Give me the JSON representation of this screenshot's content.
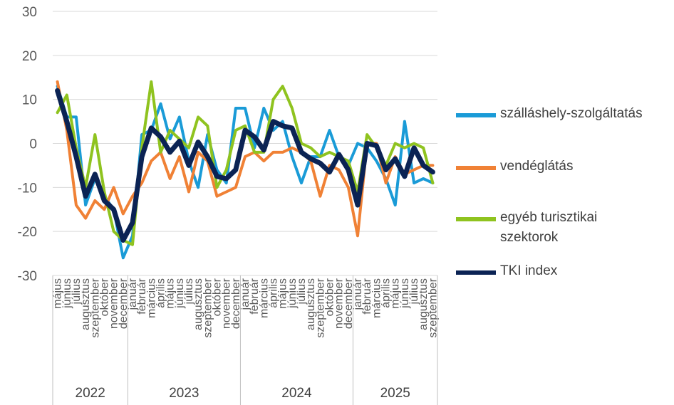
{
  "chart_data": {
    "type": "line",
    "title": "",
    "xlabel": "",
    "ylabel": "",
    "ylim": [
      -30,
      30
    ],
    "yticks": [
      30,
      20,
      10,
      0,
      -10,
      -20,
      -30
    ],
    "grid": "horizontal",
    "legend_position": "right",
    "groups": [
      {
        "label": "2022",
        "span": 8
      },
      {
        "label": "2023",
        "span": 12
      },
      {
        "label": "2024",
        "span": 12
      },
      {
        "label": "2025",
        "span": 9
      }
    ],
    "categories": [
      "május",
      "június",
      "július",
      "augusztus",
      "szeptember",
      "október",
      "november",
      "december",
      "január",
      "február",
      "március",
      "április",
      "május",
      "június",
      "július",
      "augusztus",
      "szeptember",
      "október",
      "november",
      "december",
      "január",
      "február",
      "március",
      "április",
      "május",
      "június",
      "július",
      "augusztus",
      "szeptember",
      "október",
      "november",
      "december",
      "január",
      "február",
      "március",
      "április",
      "május",
      "június",
      "július",
      "augusztus",
      "szeptember"
    ],
    "series": [
      {
        "name": "szálláshely-szolgáltatás",
        "color": "#1a9bd7",
        "width": 4,
        "values": [
          13,
          6,
          6,
          -14,
          -8,
          -12,
          -15,
          -26,
          -21,
          2,
          3,
          9,
          1,
          6,
          -4,
          -10,
          2,
          -6,
          -9,
          8,
          8,
          -1,
          8,
          3,
          5,
          -3,
          -9,
          -3,
          -3,
          3,
          -3,
          -5,
          0,
          -1,
          -4,
          -8,
          -14,
          5,
          -9,
          -8,
          -9
        ]
      },
      {
        "name": "vendéglátás",
        "color": "#f08135",
        "width": 4,
        "values": [
          14,
          3,
          -14,
          -17,
          -13,
          -15,
          -10,
          -16,
          -12,
          -9,
          -4,
          -2,
          -8,
          -3,
          -11,
          -2,
          -4,
          -12,
          -11,
          -10,
          -3,
          -2,
          -4,
          -2,
          -2,
          -1,
          -2,
          -4,
          -12,
          -5,
          -6,
          -10,
          -21,
          0,
          0,
          -9,
          -3,
          -7,
          -6,
          -5,
          -5
        ]
      },
      {
        "name": "egyéb turisztikai szektorok",
        "color": "#8fc31f",
        "width": 4,
        "values": [
          7,
          11,
          -1,
          -10,
          2,
          -11,
          -20,
          -22,
          -23,
          -1,
          14,
          -2,
          3,
          1,
          -1,
          6,
          4,
          -10,
          -6,
          3,
          4,
          -2,
          -2,
          10,
          13,
          8,
          0,
          -1,
          -3,
          -2,
          -3,
          -4,
          -11,
          2,
          -1,
          -5,
          0,
          -1,
          0,
          -1,
          -9
        ]
      },
      {
        "name": "TKI index",
        "color": "#0b2354",
        "width": 7,
        "values": [
          12,
          5,
          -3,
          -12,
          -7,
          -13,
          -15,
          -22,
          -18,
          -3,
          3.5,
          1.5,
          -2,
          0.5,
          -5,
          0.3,
          -3,
          -7.5,
          -8,
          -6,
          3,
          1.5,
          -1.5,
          5,
          4,
          3.5,
          -2,
          -3.5,
          -4.5,
          -6.5,
          -2.5,
          -6,
          -14,
          0,
          -0.5,
          -6,
          -3.5,
          -7.5,
          -1,
          -5,
          -6.5
        ]
      }
    ],
    "legend": [
      {
        "label": "szálláshely-szolgáltatás",
        "color": "#1a9bd7"
      },
      {
        "label": "vendéglátás",
        "color": "#f08135"
      },
      {
        "label": "egyéb turisztikai szektorok",
        "color": "#8fc31f"
      },
      {
        "label": "TKI index",
        "color": "#0b2354"
      }
    ]
  }
}
